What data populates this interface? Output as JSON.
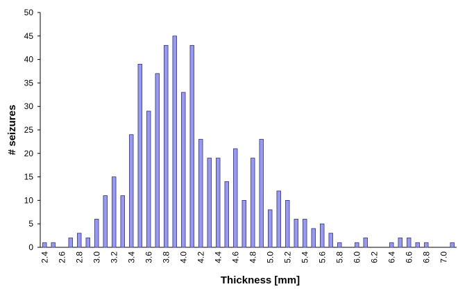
{
  "chart_data": {
    "type": "bar",
    "x_label": "Thickness [mm]",
    "y_label": "# seizures",
    "categories": [
      "2.4",
      null,
      "2.6",
      null,
      "2.8",
      null,
      "3.0",
      null,
      "3.2",
      null,
      "3.4",
      null,
      "3.6",
      null,
      "3.8",
      null,
      "4.0",
      null,
      "4.2",
      null,
      "4.4",
      null,
      "4.6",
      null,
      "4.8",
      null,
      "5.0",
      null,
      "5.2",
      null,
      "5.4",
      null,
      "5.6",
      null,
      "5.8",
      null,
      "6.0",
      null,
      "6.2",
      null,
      "6.4",
      null,
      "6.6",
      null,
      "6.8",
      null,
      "7.0",
      null
    ],
    "values": [
      1,
      1,
      0,
      2,
      3,
      2,
      6,
      11,
      15,
      11,
      24,
      39,
      29,
      37,
      43,
      45,
      33,
      43,
      23,
      19,
      19,
      14,
      21,
      10,
      19,
      23,
      8,
      12,
      10,
      6,
      6,
      4,
      5,
      3,
      1,
      0,
      1,
      2,
      0,
      0,
      1,
      2,
      2,
      1,
      1,
      0,
      0,
      1
    ],
    "color": "#9999ee",
    "ylim": [
      0,
      50
    ],
    "yticks": [
      0,
      5,
      10,
      15,
      20,
      25,
      30,
      35,
      40,
      45,
      50
    ],
    "grid": false
  }
}
